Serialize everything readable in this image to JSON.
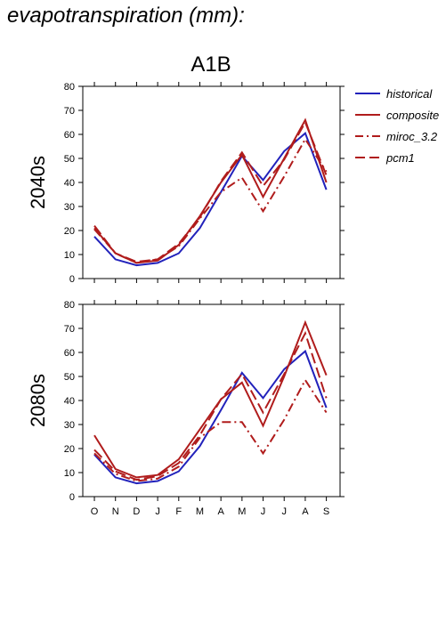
{
  "title": "evapotranspiration (mm):",
  "scenario": "A1B",
  "chart_data": [
    {
      "type": "line",
      "panel_label": "2040s",
      "categories": [
        "O",
        "N",
        "D",
        "J",
        "F",
        "M",
        "A",
        "M",
        "J",
        "J",
        "A",
        "S"
      ],
      "ylim": [
        0,
        80
      ],
      "yticks": [
        0,
        10,
        20,
        30,
        40,
        50,
        60,
        70,
        80
      ],
      "series": [
        {
          "name": "historical",
          "color": "#2222bb",
          "dash": "solid",
          "values": [
            17.5,
            8,
            5.5,
            6.5,
            10.5,
            21,
            36,
            51,
            41,
            53,
            60.5,
            37
          ]
        },
        {
          "name": "composite",
          "color": "#b01c1c",
          "dash": "solid",
          "values": [
            21,
            10.5,
            6.5,
            7.5,
            14,
            26,
            40,
            51.5,
            34,
            50,
            66,
            40
          ]
        },
        {
          "name": "miroc_3.2",
          "color": "#b01c1c",
          "dash": "dashdot",
          "values": [
            20.5,
            10.5,
            6.5,
            8,
            13.5,
            25,
            36,
            42,
            28,
            42.5,
            58,
            44.5
          ]
        },
        {
          "name": "pcm1",
          "color": "#b01c1c",
          "dash": "dash",
          "values": [
            22,
            10.5,
            7,
            8,
            14.5,
            25.5,
            40.5,
            52.5,
            38.5,
            49.5,
            65,
            43
          ]
        }
      ]
    },
    {
      "type": "line",
      "panel_label": "2080s",
      "categories": [
        "O",
        "N",
        "D",
        "J",
        "F",
        "M",
        "A",
        "M",
        "J",
        "J",
        "A",
        "S"
      ],
      "ylim": [
        0,
        80
      ],
      "yticks": [
        0,
        10,
        20,
        30,
        40,
        50,
        60,
        70,
        80
      ],
      "series": [
        {
          "name": "historical",
          "color": "#2222bb",
          "dash": "solid",
          "values": [
            17.5,
            8,
            5.5,
            6.5,
            10.5,
            21,
            36,
            51.5,
            41,
            53,
            60.5,
            37
          ]
        },
        {
          "name": "composite",
          "color": "#b01c1c",
          "dash": "solid",
          "values": [
            25.5,
            11.5,
            8,
            9,
            15.5,
            28,
            40.5,
            47.5,
            29.5,
            50,
            72.5,
            50.5
          ]
        },
        {
          "name": "miroc_3.2",
          "color": "#b01c1c",
          "dash": "dashdot",
          "values": [
            18,
            9.5,
            6.5,
            7.5,
            12.5,
            24.5,
            31,
            31,
            18,
            32,
            48.5,
            35
          ]
        },
        {
          "name": "pcm1",
          "color": "#b01c1c",
          "dash": "dash",
          "values": [
            19.5,
            10.5,
            7,
            8.5,
            14,
            25.5,
            40.5,
            51,
            35,
            51,
            68,
            41
          ]
        }
      ]
    }
  ],
  "legend": [
    {
      "label": "historical",
      "color": "#2222bb",
      "dash": "solid"
    },
    {
      "label": "composite",
      "color": "#b01c1c",
      "dash": "solid"
    },
    {
      "label": "miroc_3.2",
      "color": "#b01c1c",
      "dash": "dashdot"
    },
    {
      "label": "pcm1",
      "color": "#b01c1c",
      "dash": "dash"
    }
  ]
}
